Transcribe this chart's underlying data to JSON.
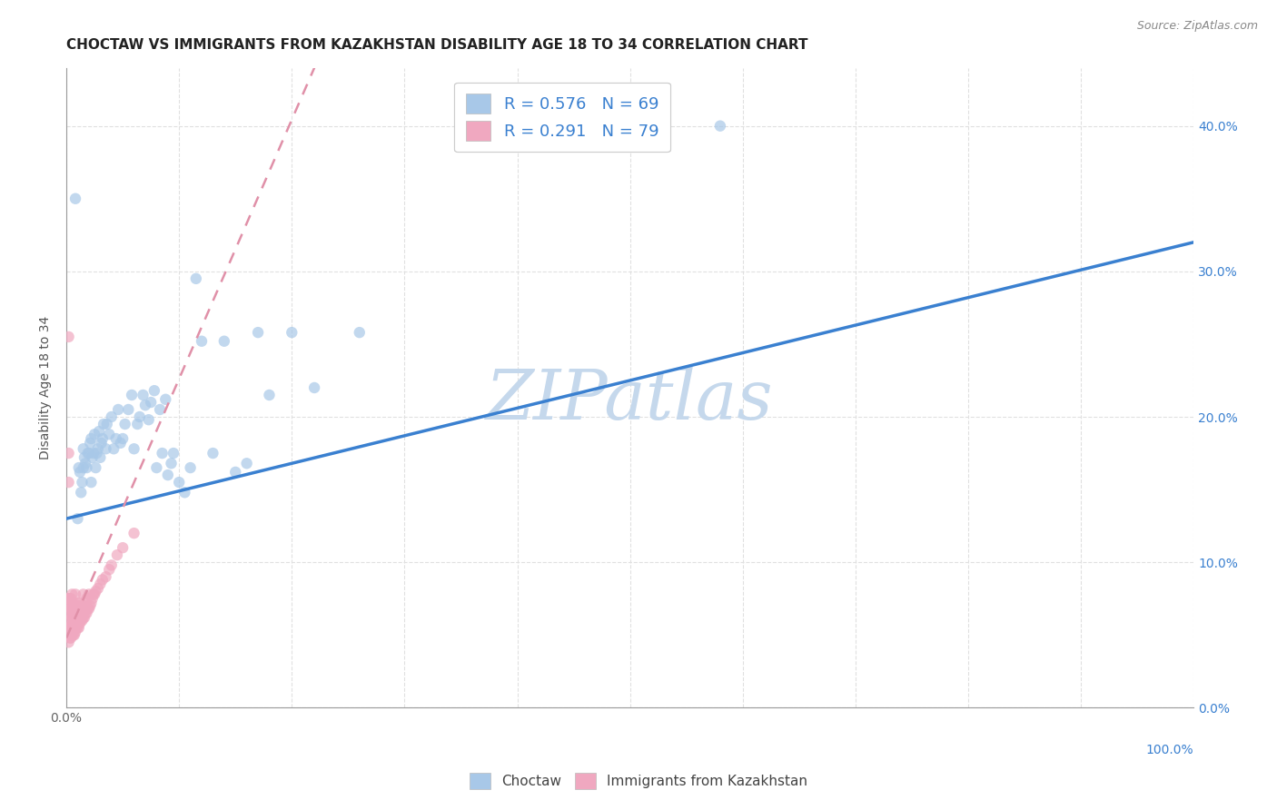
{
  "title": "CHOCTAW VS IMMIGRANTS FROM KAZAKHSTAN DISABILITY AGE 18 TO 34 CORRELATION CHART",
  "source": "Source: ZipAtlas.com",
  "ylabel": "Disability Age 18 to 34",
  "watermark": "ZIPatlas",
  "legend_r1": "R = 0.576",
  "legend_n1": "N = 69",
  "legend_r2": "R = 0.291",
  "legend_n2": "N = 79",
  "choctaw_color": "#a8c8e8",
  "kazakhstan_color": "#f0a8c0",
  "trendline1_color": "#3a80d0",
  "trendline2_color": "#e090a8",
  "choctaw_x": [
    0.008,
    0.01,
    0.011,
    0.012,
    0.013,
    0.014,
    0.015,
    0.015,
    0.016,
    0.017,
    0.018,
    0.019,
    0.02,
    0.021,
    0.022,
    0.022,
    0.023,
    0.024,
    0.025,
    0.026,
    0.027,
    0.028,
    0.029,
    0.03,
    0.031,
    0.032,
    0.033,
    0.035,
    0.036,
    0.038,
    0.04,
    0.042,
    0.044,
    0.046,
    0.048,
    0.05,
    0.052,
    0.055,
    0.058,
    0.06,
    0.063,
    0.065,
    0.068,
    0.07,
    0.073,
    0.075,
    0.078,
    0.08,
    0.083,
    0.085,
    0.088,
    0.09,
    0.093,
    0.095,
    0.1,
    0.105,
    0.11,
    0.115,
    0.12,
    0.13,
    0.14,
    0.15,
    0.16,
    0.17,
    0.18,
    0.2,
    0.22,
    0.26,
    0.58
  ],
  "choctaw_y": [
    0.35,
    0.13,
    0.165,
    0.162,
    0.148,
    0.155,
    0.178,
    0.165,
    0.172,
    0.168,
    0.165,
    0.175,
    0.175,
    0.182,
    0.185,
    0.155,
    0.172,
    0.175,
    0.188,
    0.165,
    0.175,
    0.178,
    0.19,
    0.172,
    0.182,
    0.185,
    0.195,
    0.178,
    0.195,
    0.188,
    0.2,
    0.178,
    0.185,
    0.205,
    0.182,
    0.185,
    0.195,
    0.205,
    0.215,
    0.178,
    0.195,
    0.2,
    0.215,
    0.208,
    0.198,
    0.21,
    0.218,
    0.165,
    0.205,
    0.175,
    0.212,
    0.16,
    0.168,
    0.175,
    0.155,
    0.148,
    0.165,
    0.295,
    0.252,
    0.175,
    0.252,
    0.162,
    0.168,
    0.258,
    0.215,
    0.258,
    0.22,
    0.258,
    0.4
  ],
  "kazakhstan_x": [
    0.001,
    0.001,
    0.001,
    0.002,
    0.002,
    0.002,
    0.002,
    0.003,
    0.003,
    0.003,
    0.003,
    0.003,
    0.004,
    0.004,
    0.004,
    0.004,
    0.004,
    0.005,
    0.005,
    0.005,
    0.005,
    0.005,
    0.006,
    0.006,
    0.006,
    0.006,
    0.007,
    0.007,
    0.007,
    0.008,
    0.008,
    0.008,
    0.008,
    0.009,
    0.009,
    0.009,
    0.01,
    0.01,
    0.01,
    0.011,
    0.011,
    0.011,
    0.012,
    0.012,
    0.012,
    0.013,
    0.013,
    0.014,
    0.014,
    0.015,
    0.015,
    0.015,
    0.016,
    0.016,
    0.017,
    0.017,
    0.018,
    0.018,
    0.019,
    0.02,
    0.02,
    0.021,
    0.022,
    0.023,
    0.024,
    0.025,
    0.026,
    0.028,
    0.03,
    0.032,
    0.035,
    0.038,
    0.04,
    0.045,
    0.05,
    0.06,
    0.002,
    0.002,
    0.002
  ],
  "kazakhstan_y": [
    0.055,
    0.065,
    0.075,
    0.045,
    0.05,
    0.06,
    0.07,
    0.048,
    0.055,
    0.06,
    0.07,
    0.075,
    0.048,
    0.055,
    0.065,
    0.068,
    0.075,
    0.05,
    0.055,
    0.062,
    0.07,
    0.078,
    0.05,
    0.058,
    0.065,
    0.072,
    0.05,
    0.058,
    0.068,
    0.052,
    0.06,
    0.068,
    0.078,
    0.055,
    0.062,
    0.072,
    0.055,
    0.062,
    0.07,
    0.055,
    0.062,
    0.07,
    0.058,
    0.065,
    0.072,
    0.06,
    0.068,
    0.06,
    0.068,
    0.062,
    0.068,
    0.078,
    0.062,
    0.07,
    0.065,
    0.072,
    0.065,
    0.075,
    0.068,
    0.068,
    0.078,
    0.07,
    0.072,
    0.075,
    0.078,
    0.078,
    0.08,
    0.082,
    0.085,
    0.088,
    0.09,
    0.095,
    0.098,
    0.105,
    0.11,
    0.12,
    0.155,
    0.175,
    0.255
  ],
  "xlim": [
    0.0,
    1.0
  ],
  "ylim": [
    0.0,
    0.44
  ],
  "ytick_vals": [
    0.0,
    0.1,
    0.2,
    0.3,
    0.4
  ],
  "ytick_labels_right": [
    "0.0%",
    "10.0%",
    "20.0%",
    "30.0%",
    "40.0%"
  ],
  "title_fontsize": 11,
  "axis_label_fontsize": 10,
  "tick_fontsize": 10,
  "source_fontsize": 9,
  "watermark_color": "#c5d8ec",
  "watermark_fontsize": 55,
  "background_color": "#ffffff",
  "grid_color": "#e0e0e0",
  "grid_style": "--"
}
